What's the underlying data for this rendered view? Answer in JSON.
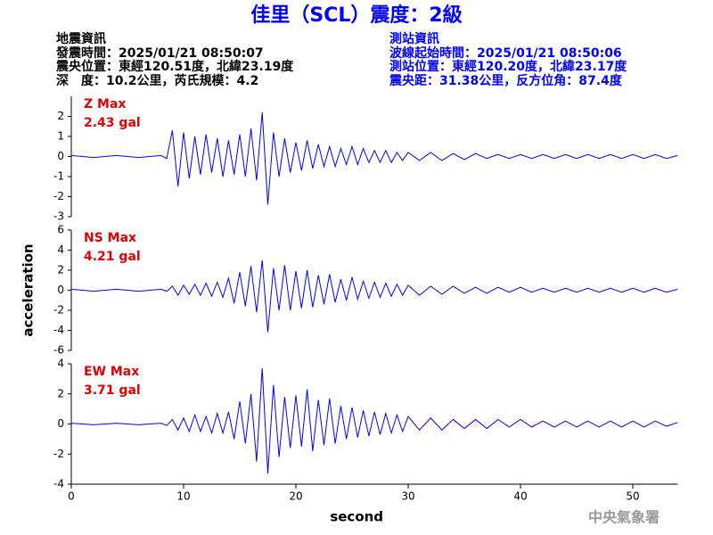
{
  "header": {
    "title": "佳里（SCL）震度：2級",
    "left": [
      "地震資訊",
      "發震時間：2025/01/21 08:50:07",
      "震央位置：東經120.51度，北緯23.19度",
      "深　度：10.2公里，芮氏規模：4.2"
    ],
    "right": [
      "測站資訊",
      "波線起始時間：2025/01/21 08:50:06",
      "測站位置：東經120.20度，北緯23.17度",
      "震央距：31.38公里，反方位角：87.4度"
    ]
  },
  "footer": "中央氣象署",
  "chart_data": [
    {
      "type": "line",
      "annotation": "Z Max",
      "annotation2": "2.43 gal",
      "annotation_color": "#e00000",
      "xlim": [
        0,
        54
      ],
      "ylim": [
        -3,
        3
      ],
      "yticks": [
        -3,
        -2,
        -1,
        0,
        1,
        2
      ],
      "x": [
        0,
        2,
        4,
        6,
        8,
        8.5,
        9,
        9.5,
        10,
        10.5,
        11,
        11.5,
        12,
        12.5,
        13,
        13.5,
        14,
        14.5,
        15,
        15.5,
        16,
        16.5,
        17,
        17.5,
        18,
        18.5,
        19,
        19.5,
        20,
        20.5,
        21,
        21.5,
        22,
        22.5,
        23,
        23.5,
        24,
        24.5,
        25,
        25.5,
        26,
        26.5,
        27,
        27.5,
        28,
        28.5,
        29,
        29.5,
        30,
        31,
        32,
        33,
        34,
        35,
        36,
        37,
        38,
        39,
        40,
        41,
        42,
        43,
        44,
        45,
        46,
        47,
        48,
        49,
        50,
        51,
        52,
        53,
        54
      ],
      "series": [
        {
          "name": "Z",
          "color": "#0000ff",
          "values": [
            0.05,
            -0.05,
            0.05,
            -0.05,
            0.05,
            -0.1,
            1.3,
            -1.5,
            1.2,
            -1.1,
            1.0,
            -0.9,
            1.1,
            -0.8,
            0.9,
            -1.0,
            0.8,
            -0.9,
            1.1,
            -1.0,
            1.4,
            -1.2,
            2.2,
            -2.4,
            1.2,
            -1.0,
            0.9,
            -0.8,
            0.7,
            -0.7,
            0.8,
            -0.6,
            0.6,
            -0.5,
            0.5,
            -0.5,
            0.4,
            -0.4,
            0.5,
            -0.4,
            0.4,
            -0.3,
            0.3,
            -0.3,
            0.3,
            -0.3,
            0.2,
            -0.2,
            0.2,
            -0.2,
            0.2,
            -0.2,
            0.15,
            -0.15,
            0.15,
            -0.1,
            0.1,
            -0.1,
            0.1,
            -0.1,
            0.1,
            -0.1,
            0.1,
            -0.1,
            0.1,
            -0.1,
            0.1,
            -0.1,
            0.1,
            -0.1,
            0.1,
            -0.1,
            0.05
          ]
        }
      ]
    },
    {
      "type": "line",
      "annotation": "NS Max",
      "annotation2": "4.21 gal",
      "annotation_color": "#e00000",
      "ylabel": "acceleration",
      "xlim": [
        0,
        54
      ],
      "ylim": [
        -6,
        6
      ],
      "yticks": [
        -6,
        -4,
        -2,
        0,
        2,
        4,
        6
      ],
      "x": [
        0,
        2,
        4,
        6,
        8,
        8.5,
        9,
        9.5,
        10,
        10.5,
        11,
        11.5,
        12,
        12.5,
        13,
        13.5,
        14,
        14.5,
        15,
        15.5,
        16,
        16.5,
        17,
        17.5,
        18,
        18.5,
        19,
        19.5,
        20,
        20.5,
        21,
        21.5,
        22,
        22.5,
        23,
        23.5,
        24,
        24.5,
        25,
        25.5,
        26,
        26.5,
        27,
        27.5,
        28,
        28.5,
        29,
        29.5,
        30,
        31,
        32,
        33,
        34,
        35,
        36,
        37,
        38,
        39,
        40,
        41,
        42,
        43,
        44,
        45,
        46,
        47,
        48,
        49,
        50,
        51,
        52,
        53,
        54
      ],
      "series": [
        {
          "name": "NS",
          "color": "#0000ff",
          "values": [
            0.1,
            -0.1,
            0.1,
            -0.1,
            0.1,
            -0.1,
            0.4,
            -0.5,
            0.5,
            -0.4,
            0.6,
            -0.5,
            0.7,
            -0.6,
            0.8,
            -0.7,
            1.2,
            -1.3,
            1.8,
            -1.6,
            2.4,
            -2.2,
            3.0,
            -4.2,
            2.2,
            -2.0,
            2.5,
            -2.0,
            1.9,
            -1.8,
            2.0,
            -1.7,
            1.5,
            -1.4,
            1.6,
            -1.2,
            1.1,
            -1.0,
            1.3,
            -0.9,
            0.9,
            -0.8,
            0.8,
            -0.7,
            0.7,
            -0.6,
            0.6,
            -0.5,
            0.5,
            -0.5,
            0.4,
            -0.4,
            0.4,
            -0.3,
            0.3,
            -0.3,
            0.3,
            -0.2,
            0.3,
            -0.2,
            0.2,
            -0.2,
            0.2,
            -0.2,
            0.2,
            -0.2,
            0.2,
            -0.2,
            0.2,
            -0.2,
            0.2,
            -0.2,
            0.1
          ]
        }
      ]
    },
    {
      "type": "line",
      "annotation": "EW Max",
      "annotation2": "3.71 gal",
      "annotation_color": "#e00000",
      "xlabel": "second",
      "xlim": [
        0,
        54
      ],
      "ylim": [
        -4,
        4
      ],
      "yticks": [
        -4,
        -2,
        0,
        2,
        4
      ],
      "xticks": [
        0,
        10,
        20,
        30,
        40,
        50
      ],
      "x": [
        0,
        2,
        4,
        6,
        8,
        8.5,
        9,
        9.5,
        10,
        10.5,
        11,
        11.5,
        12,
        12.5,
        13,
        13.5,
        14,
        14.5,
        15,
        15.5,
        16,
        16.5,
        17,
        17.5,
        18,
        18.5,
        19,
        19.5,
        20,
        20.5,
        21,
        21.5,
        22,
        22.5,
        23,
        23.5,
        24,
        24.5,
        25,
        25.5,
        26,
        26.5,
        27,
        27.5,
        28,
        28.5,
        29,
        29.5,
        30,
        31,
        32,
        33,
        34,
        35,
        36,
        37,
        38,
        39,
        40,
        41,
        42,
        43,
        44,
        45,
        46,
        47,
        48,
        49,
        50,
        51,
        52,
        53,
        54
      ],
      "series": [
        {
          "name": "EW",
          "color": "#0000ff",
          "values": [
            0.05,
            -0.05,
            0.05,
            -0.05,
            0.05,
            -0.1,
            0.3,
            -0.4,
            0.4,
            -0.5,
            0.6,
            -0.5,
            0.5,
            -0.6,
            0.7,
            -0.6,
            0.8,
            -1.0,
            1.5,
            -1.3,
            2.0,
            -2.5,
            3.7,
            -3.3,
            2.6,
            -2.2,
            1.8,
            -1.6,
            1.9,
            -1.5,
            2.3,
            -1.8,
            1.6,
            -1.4,
            1.7,
            -1.3,
            1.2,
            -1.0,
            1.1,
            -0.9,
            0.9,
            -0.8,
            0.8,
            -0.7,
            0.7,
            -0.6,
            0.6,
            -0.5,
            0.5,
            -0.4,
            0.4,
            -0.4,
            0.3,
            -0.3,
            0.3,
            -0.3,
            0.3,
            -0.2,
            0.3,
            -0.2,
            0.2,
            -0.2,
            0.2,
            -0.2,
            0.2,
            -0.2,
            0.2,
            -0.2,
            0.2,
            -0.2,
            0.2,
            -0.15,
            0.1
          ]
        }
      ]
    }
  ]
}
